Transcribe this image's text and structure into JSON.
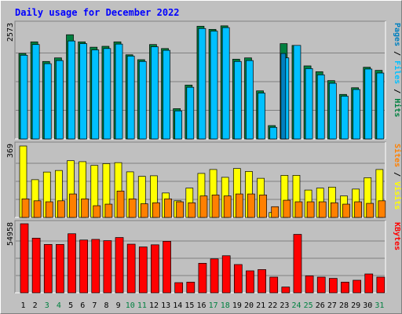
{
  "chart_data": {
    "type": "bar",
    "title": "Daily usage for December 2022",
    "categories": [
      "1",
      "2",
      "3",
      "4",
      "5",
      "6",
      "7",
      "8",
      "9",
      "10",
      "11",
      "12",
      "13",
      "14",
      "15",
      "16",
      "17",
      "18",
      "19",
      "20",
      "21",
      "22",
      "23",
      "24",
      "25",
      "26",
      "27",
      "28",
      "29",
      "30",
      "31"
    ],
    "weekend_days": [
      "3",
      "4",
      "10",
      "11",
      "17",
      "18",
      "24",
      "25",
      "31"
    ],
    "colors": {
      "background": "#c0c0c0",
      "title": "#0000ff",
      "hits": "#008040",
      "files": "#00c0ff",
      "pages": "#0080c0",
      "visits": "#ffff00",
      "sites": "#ff8000",
      "kbytes": "#ff0000",
      "weekday_label": "#000000",
      "weekend_label": "#008040"
    },
    "panels": [
      {
        "name": "hits-files-pages",
        "max_label": "2573",
        "ymax": 2573,
        "legend": [
          {
            "text": "Pages",
            "color": "#0080c0"
          },
          {
            "text": " / ",
            "color": "#000000"
          },
          {
            "text": "Files",
            "color": "#00c0ff"
          },
          {
            "text": " / ",
            "color": "#000000"
          },
          {
            "text": "Hits",
            "color": "#008040"
          }
        ],
        "series": [
          {
            "name": "Hits",
            "values": [
              1920,
              2180,
              1740,
              1820,
              2340,
              2180,
              2060,
              2080,
              2180,
              1890,
              1780,
              2120,
              2030,
              680,
              1210,
              2530,
              2460,
              2540,
              1790,
              1820,
              1080,
              300,
              2140,
              2100,
              1640,
              1510,
              1310,
              1000,
              1150,
              1610,
              1540
            ]
          },
          {
            "name": "Files",
            "values": [
              1880,
              2120,
              1690,
              1760,
              2200,
              2140,
              2000,
              2030,
              2130,
              1860,
              1740,
              2070,
              1990,
              630,
              1160,
              2480,
              2420,
              2500,
              1740,
              1760,
              1030,
              260,
              1820,
              2100,
              1580,
              1440,
              1250,
              960,
              1110,
              1570,
              1480
            ]
          },
          {
            "name": "Pages",
            "values": [
              0,
              0,
              0,
              0,
              0,
              0,
              0,
              0,
              0,
              0,
              0,
              0,
              0,
              0,
              0,
              0,
              0,
              0,
              0,
              0,
              0,
              0,
              1920,
              0,
              0,
              0,
              0,
              0,
              0,
              0,
              0
            ]
          }
        ]
      },
      {
        "name": "visits-sites",
        "max_label": "369",
        "ymax": 369,
        "legend": [
          {
            "text": "Sites",
            "color": "#ff8000"
          },
          {
            "text": " / ",
            "color": "#000000"
          },
          {
            "text": "Visits",
            "color": "#ffff00"
          }
        ],
        "series": [
          {
            "name": "Visits",
            "values": [
              365,
              193,
              232,
              240,
              290,
              285,
              266,
              275,
              280,
              233,
              210,
              213,
              125,
              85,
              150,
              225,
              245,
              205,
              250,
              235,
              200,
              25,
              215,
              215,
              140,
              150,
              155,
              110,
              145,
              203,
              245
            ]
          },
          {
            "name": "Sites",
            "values": [
              95,
              85,
              80,
              85,
              120,
              95,
              60,
              68,
              135,
              95,
              70,
              75,
              95,
              80,
              75,
              110,
              115,
              110,
              120,
              120,
              115,
              55,
              88,
              80,
              80,
              80,
              75,
              68,
              80,
              72,
              85
            ]
          }
        ]
      },
      {
        "name": "kbytes",
        "max_label": "54958",
        "ymax": 54958,
        "legend": [
          {
            "text": "KBytes",
            "color": "#ff0000"
          }
        ],
        "series": [
          {
            "name": "KBytes",
            "values": [
              54958,
              43500,
              38500,
              38500,
              47000,
              42000,
              42500,
              41500,
              44000,
              38700,
              36500,
              38200,
              41000,
              8100,
              8500,
              23500,
              27000,
              29500,
              22500,
              17500,
              18500,
              12500,
              4600,
              46500,
              13500,
              12500,
              11500,
              8500,
              10000,
              15000,
              12500
            ]
          }
        ]
      }
    ]
  }
}
